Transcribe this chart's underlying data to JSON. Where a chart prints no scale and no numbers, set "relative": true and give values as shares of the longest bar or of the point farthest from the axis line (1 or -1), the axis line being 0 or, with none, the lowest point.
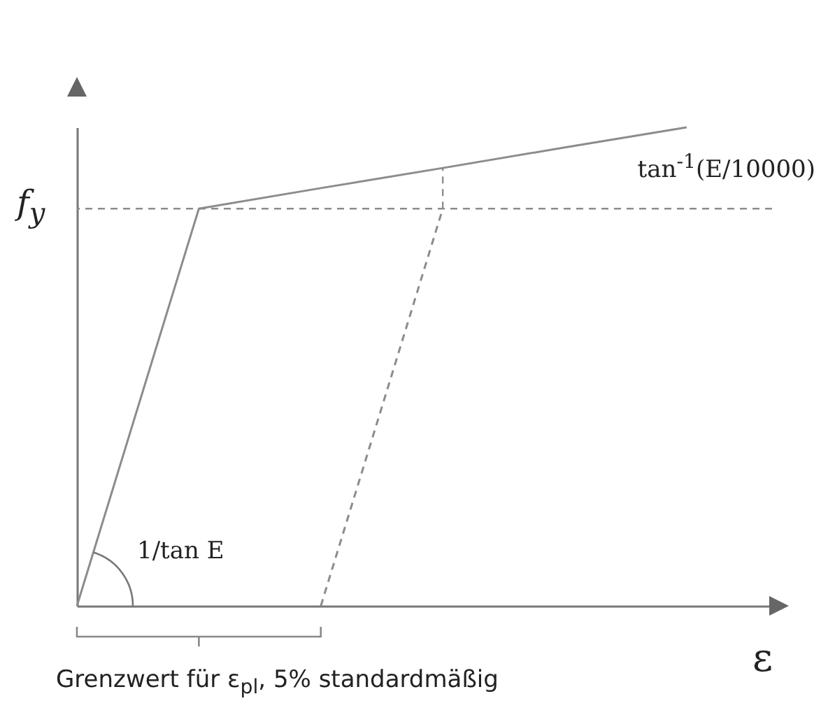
{
  "chart_data": {
    "type": "line",
    "relative": true,
    "xlabel": "ε",
    "categories": [
      null,
      null,
      null,
      null,
      null,
      null
    ],
    "marker": "none",
    "series": [
      {
        "color": "#8c8c8c",
        "values": [
          0,
          0.83,
          0.873,
          0.915,
          0.958,
          1
        ],
        "line_style": "solid"
      },
      {
        "color": "#8c8c8c",
        "values": [
          null,
          null,
          0,
          0.83,
          null,
          null
        ],
        "line_style": "dashed"
      }
    ],
    "ref_lines": [
      {
        "axis": "y",
        "value": 0.83,
        "label": "f$_{y}$",
        "color": "#8c8c8c",
        "line_style": "dashed"
      }
    ],
    "annotations": [
      "tan$^{-1}$(E/10000)",
      "1/tan E",
      "Grenzwert für ε$_{pl}$, 5% standardmäßig"
    ]
  }
}
